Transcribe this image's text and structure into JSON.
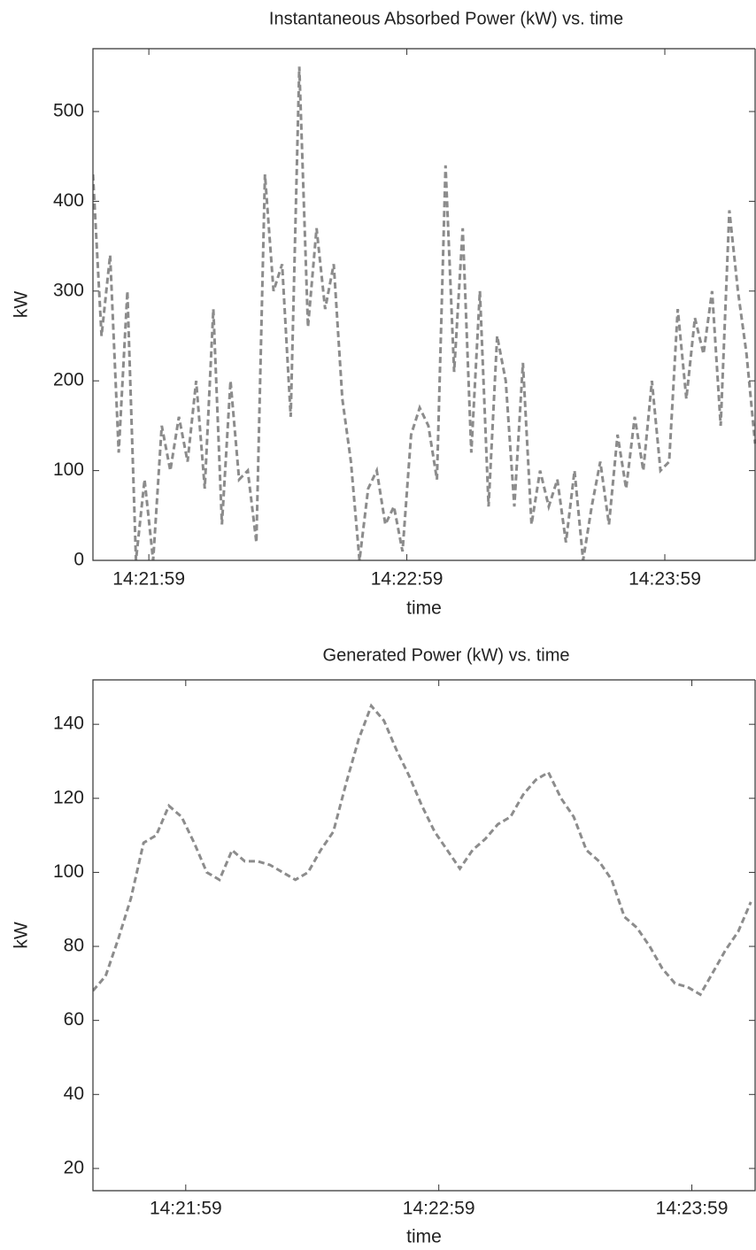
{
  "chart_data": [
    {
      "type": "line",
      "title": "Instantaneous Absorbed Power (kW) vs. time",
      "x_label": "time",
      "y_label": "kW",
      "x": [
        "14:21:46",
        "14:21:48",
        "14:21:50",
        "14:21:52",
        "14:21:54",
        "14:21:56",
        "14:21:58",
        "14:22:00",
        "14:22:02",
        "14:22:04",
        "14:22:06",
        "14:22:08",
        "14:22:10",
        "14:22:12",
        "14:22:14",
        "14:22:16",
        "14:22:18",
        "14:22:20",
        "14:22:22",
        "14:22:24",
        "14:22:26",
        "14:22:28",
        "14:22:30",
        "14:22:32",
        "14:22:34",
        "14:22:36",
        "14:22:38",
        "14:22:40",
        "14:22:42",
        "14:22:44",
        "14:22:46",
        "14:22:48",
        "14:22:50",
        "14:22:52",
        "14:22:54",
        "14:22:56",
        "14:22:58",
        "14:23:00",
        "14:23:02",
        "14:23:04",
        "14:23:06",
        "14:23:08",
        "14:23:10",
        "14:23:12",
        "14:23:14",
        "14:23:16",
        "14:23:18",
        "14:23:20",
        "14:23:22",
        "14:23:24",
        "14:23:26",
        "14:23:28",
        "14:23:30",
        "14:23:32",
        "14:23:34",
        "14:23:36",
        "14:23:38",
        "14:23:40",
        "14:23:42",
        "14:23:44",
        "14:23:46",
        "14:23:48",
        "14:23:50",
        "14:23:52",
        "14:23:54",
        "14:23:56",
        "14:23:58",
        "14:24:00",
        "14:24:02",
        "14:24:04",
        "14:24:06",
        "14:24:08",
        "14:24:10",
        "14:24:12",
        "14:24:14",
        "14:24:16",
        "14:24:18",
        "14:24:20"
      ],
      "values": [
        430,
        250,
        340,
        120,
        300,
        0,
        90,
        0,
        150,
        100,
        160,
        110,
        200,
        80,
        280,
        40,
        200,
        90,
        100,
        20,
        430,
        300,
        330,
        160,
        550,
        260,
        370,
        280,
        330,
        180,
        110,
        0,
        80,
        100,
        40,
        60,
        10,
        140,
        170,
        150,
        90,
        440,
        210,
        370,
        120,
        300,
        60,
        250,
        200,
        60,
        220,
        40,
        100,
        60,
        90,
        20,
        100,
        0,
        60,
        110,
        40,
        140,
        80,
        160,
        100,
        200,
        100,
        110,
        280,
        180,
        270,
        230,
        300,
        150,
        390,
        300,
        230,
        130
      ],
      "color": "#8c8c8c",
      "xlim": [
        "14:21:46",
        "14:24:20"
      ],
      "xticks": [
        "14:21:59",
        "14:22:59",
        "14:23:59"
      ],
      "ylim": [
        0,
        570
      ],
      "yticks": [
        0,
        100,
        200,
        300,
        400,
        500
      ],
      "grid": false
    },
    {
      "type": "line",
      "title": "Generated Power (kW) vs. time",
      "x_label": "time",
      "y_label": "kW",
      "x": [
        "14:21:37",
        "14:21:40",
        "14:21:43",
        "14:21:46",
        "14:21:49",
        "14:21:52",
        "14:21:55",
        "14:21:58",
        "14:22:01",
        "14:22:04",
        "14:22:07",
        "14:22:10",
        "14:22:13",
        "14:22:16",
        "14:22:19",
        "14:22:22",
        "14:22:25",
        "14:22:28",
        "14:22:31",
        "14:22:34",
        "14:22:37",
        "14:22:40",
        "14:22:43",
        "14:22:46",
        "14:22:49",
        "14:22:52",
        "14:22:55",
        "14:22:58",
        "14:23:01",
        "14:23:04",
        "14:23:07",
        "14:23:10",
        "14:23:13",
        "14:23:16",
        "14:23:19",
        "14:23:22",
        "14:23:25",
        "14:23:28",
        "14:23:31",
        "14:23:34",
        "14:23:37",
        "14:23:40",
        "14:23:43",
        "14:23:46",
        "14:23:49",
        "14:23:52",
        "14:23:55",
        "14:23:58",
        "14:24:01",
        "14:24:04",
        "14:24:07",
        "14:24:10",
        "14:24:13"
      ],
      "values": [
        68,
        72,
        82,
        93,
        108,
        110,
        118,
        115,
        108,
        100,
        98,
        106,
        103,
        103,
        102,
        100,
        98,
        100,
        106,
        111,
        124,
        136,
        145,
        141,
        133,
        126,
        118,
        111,
        106,
        101,
        106,
        109,
        113,
        115,
        121,
        125,
        127,
        120,
        115,
        106,
        103,
        98,
        88,
        85,
        80,
        74,
        70,
        69,
        67,
        73,
        79,
        84,
        92
      ],
      "color": "#8c8c8c",
      "xlim": [
        "14:21:37",
        "14:24:14"
      ],
      "xticks": [
        "14:21:59",
        "14:22:59",
        "14:23:59"
      ],
      "ylim": [
        14,
        152
      ],
      "yticks": [
        20,
        40,
        60,
        80,
        100,
        120,
        140
      ],
      "grid": false
    }
  ]
}
